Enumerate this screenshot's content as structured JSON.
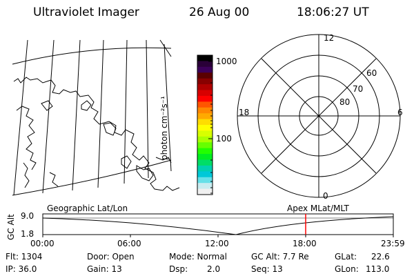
{
  "header": {
    "instrument": "Ultraviolet Imager",
    "date": "26 Aug 00",
    "time": "18:06:27 UT"
  },
  "colorbar": {
    "unit_label": "photon cm⁻²s⁻¹",
    "ticks": [
      "1000",
      "100"
    ],
    "colors": [
      "#000000",
      "#2a0038",
      "#3c005a",
      "#5a0000",
      "#880000",
      "#b00000",
      "#d80000",
      "#ff0000",
      "#ff5500",
      "#ff8800",
      "#ffaa00",
      "#ffdd00",
      "#ffff00",
      "#d8ff00",
      "#aaff00",
      "#66ff00",
      "#22ff00",
      "#00ee22",
      "#00dd66",
      "#00d0b0",
      "#00c8d8",
      "#66e0e8",
      "#c8ecf0",
      "#f0f0f0"
    ]
  },
  "polar": {
    "lat_labels": [
      "60",
      "70",
      "80"
    ],
    "mlt_labels": [
      "12",
      "18",
      "6",
      "0"
    ]
  },
  "altitude_strip": {
    "left_label": "Geographic Lat/Lon",
    "right_label": "Apex MLat/MLT",
    "y_axis_label": "GC Alt",
    "y_ticks": [
      "9.0",
      "1.8"
    ],
    "x_ticks": [
      "00:00",
      "06:00",
      "12:00",
      "18:00",
      "23:59"
    ],
    "marker_color": "#ff0000"
  },
  "info": {
    "flt": "Flt: 1304",
    "ip": "IP: 36.0",
    "door": "Door: Open",
    "gain": "Gain: 13",
    "mode": "Mode: Normal",
    "dsp": "Dsp:",
    "dsp_val": "2.0",
    "gc_alt": "GC Alt: 7.7 Re",
    "seq": "Seq: 13",
    "glat_label": "GLat:",
    "glat_val": "22.6",
    "glon_label": "GLon:",
    "glon_val": "113.0"
  }
}
